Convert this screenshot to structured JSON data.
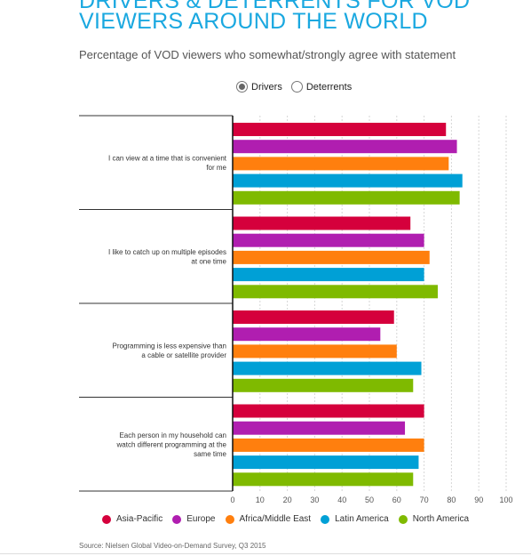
{
  "header": {
    "title": "DRIVERS & DETERRENTS FOR VOD VIEWERS AROUND THE WORLD",
    "subtitle": "Percentage of VOD viewers who somewhat/strongly agree with statement"
  },
  "toggle": {
    "options": [
      {
        "label": "Drivers",
        "selected": true
      },
      {
        "label": "Deterrents",
        "selected": false
      }
    ]
  },
  "source": "Source: Nielsen Global Video-on-Demand Survey, Q3 2015",
  "chart_data": {
    "type": "bar",
    "orientation": "horizontal",
    "title": "DRIVERS & DETERRENTS FOR VOD VIEWERS AROUND THE WORLD",
    "subtitle": "Percentage of VOD viewers who somewhat/strongly agree with statement",
    "categories": [
      "I can view at a time that is convenient for me",
      "I like to catch up on multiple episodes at one time",
      "Programming is less expensive than a cable or satellite provider",
      "Each person in my household can watch different programming at the same time"
    ],
    "category_lines": [
      [
        "I can view at a time that is convenient",
        "for me"
      ],
      [
        "I like to catch up on multiple episodes",
        "at one time"
      ],
      [
        "Programming is less expensive than",
        "a cable or satellite provider"
      ],
      [
        "Each person in my household can",
        "watch different programming at the",
        "same time"
      ]
    ],
    "series": [
      {
        "name": "Asia-Pacific",
        "color": "#d5003c",
        "values": [
          78,
          65,
          59,
          70
        ]
      },
      {
        "name": "Europe",
        "color": "#b01eb0",
        "values": [
          82,
          70,
          54,
          63
        ]
      },
      {
        "name": "Africa/Middle East",
        "color": "#ff7f0e",
        "values": [
          79,
          72,
          60,
          70
        ]
      },
      {
        "name": "Latin America",
        "color": "#00a0d6",
        "values": [
          84,
          70,
          69,
          68
        ]
      },
      {
        "name": "North America",
        "color": "#7fba00",
        "values": [
          83,
          75,
          66,
          66
        ]
      }
    ],
    "xlim": [
      0,
      100
    ],
    "xticks": [
      "0",
      "10",
      "20",
      "30",
      "40",
      "50",
      "60",
      "70",
      "80",
      "90",
      "100"
    ],
    "xlabel": "",
    "ylabel": "",
    "grid": "vertical dashed",
    "legend": "bottom"
  }
}
